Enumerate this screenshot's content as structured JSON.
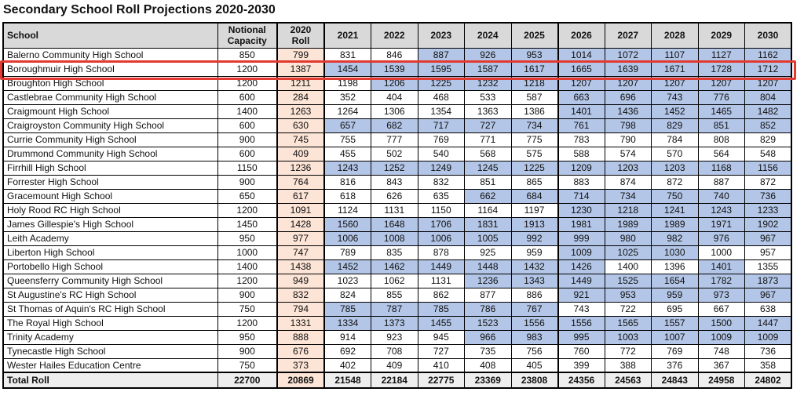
{
  "title": "Secondary School Roll Projections 2020-2030",
  "colors": {
    "header_bg": "#d9d9d9",
    "over_capacity_blue": "#b4c6e7",
    "roll_2020_peach": "#fce4d6",
    "total_row_bg": "#eeeeee",
    "highlight_red": "#e23930"
  },
  "table": {
    "columns": [
      "School",
      "Notional Capacity",
      "2020 Roll",
      "2021",
      "2022",
      "2023",
      "2024",
      "2025",
      "2026",
      "2027",
      "2028",
      "2029",
      "2030"
    ],
    "highlighted_school": "Boroughmuir High School",
    "rows": [
      {
        "school": "Balerno Community High School",
        "capacity": 850,
        "roll_2020": 799,
        "years": [
          831,
          846,
          887,
          926,
          953,
          1014,
          1072,
          1107,
          1127,
          1162
        ]
      },
      {
        "school": "Boroughmuir High School",
        "capacity": 1200,
        "roll_2020": 1387,
        "years": [
          1454,
          1539,
          1595,
          1587,
          1617,
          1665,
          1639,
          1671,
          1728,
          1712
        ]
      },
      {
        "school": "Broughton High School",
        "capacity": 1200,
        "roll_2020": 1211,
        "years": [
          1198,
          1206,
          1225,
          1232,
          1218,
          1207,
          1207,
          1207,
          1207,
          1207
        ]
      },
      {
        "school": "Castlebrae Community High School",
        "capacity": 600,
        "roll_2020": 284,
        "years": [
          352,
          404,
          468,
          533,
          587,
          663,
          696,
          743,
          776,
          804
        ]
      },
      {
        "school": "Craigmount High School",
        "capacity": 1400,
        "roll_2020": 1263,
        "years": [
          1264,
          1306,
          1354,
          1363,
          1386,
          1401,
          1436,
          1452,
          1465,
          1482
        ]
      },
      {
        "school": "Craigroyston Community High School",
        "capacity": 600,
        "roll_2020": 630,
        "years": [
          657,
          682,
          717,
          727,
          734,
          761,
          798,
          829,
          851,
          852
        ]
      },
      {
        "school": "Currie Community High School",
        "capacity": 900,
        "roll_2020": 745,
        "years": [
          755,
          777,
          769,
          771,
          775,
          783,
          790,
          784,
          808,
          829
        ]
      },
      {
        "school": "Drummond Community High School",
        "capacity": 600,
        "roll_2020": 409,
        "years": [
          455,
          502,
          540,
          568,
          575,
          588,
          574,
          570,
          564,
          548
        ]
      },
      {
        "school": "Firrhill High School",
        "capacity": 1150,
        "roll_2020": 1236,
        "years": [
          1243,
          1252,
          1249,
          1245,
          1225,
          1209,
          1203,
          1203,
          1168,
          1156
        ]
      },
      {
        "school": "Forrester High School",
        "capacity": 900,
        "roll_2020": 764,
        "years": [
          816,
          843,
          832,
          851,
          865,
          883,
          874,
          872,
          887,
          872
        ]
      },
      {
        "school": "Gracemount High School",
        "capacity": 650,
        "roll_2020": 617,
        "years": [
          618,
          626,
          635,
          662,
          684,
          714,
          734,
          750,
          740,
          736
        ]
      },
      {
        "school": "Holy Rood RC High School",
        "capacity": 1200,
        "roll_2020": 1091,
        "years": [
          1124,
          1131,
          1150,
          1164,
          1197,
          1230,
          1218,
          1241,
          1243,
          1233
        ]
      },
      {
        "school": "James Gillespie's High School",
        "capacity": 1450,
        "roll_2020": 1428,
        "years": [
          1560,
          1648,
          1706,
          1831,
          1913,
          1981,
          1989,
          1989,
          1971,
          1902
        ]
      },
      {
        "school": "Leith Academy",
        "capacity": 950,
        "roll_2020": 977,
        "years": [
          1006,
          1008,
          1006,
          1005,
          992,
          999,
          980,
          982,
          976,
          967
        ]
      },
      {
        "school": "Liberton High School",
        "capacity": 1000,
        "roll_2020": 747,
        "years": [
          789,
          835,
          878,
          925,
          959,
          1009,
          1025,
          1030,
          1000,
          957
        ]
      },
      {
        "school": "Portobello High School",
        "capacity": 1400,
        "roll_2020": 1438,
        "years": [
          1452,
          1462,
          1449,
          1448,
          1432,
          1426,
          1400,
          1396,
          1401,
          1355
        ]
      },
      {
        "school": "Queensferry Community High School",
        "capacity": 1200,
        "roll_2020": 949,
        "years": [
          1023,
          1062,
          1131,
          1236,
          1343,
          1449,
          1525,
          1654,
          1782,
          1873
        ]
      },
      {
        "school": "St Augustine's RC High School",
        "capacity": 900,
        "roll_2020": 832,
        "years": [
          824,
          855,
          862,
          877,
          886,
          921,
          953,
          959,
          973,
          967
        ]
      },
      {
        "school": "St Thomas of Aquin's RC High School",
        "capacity": 750,
        "roll_2020": 794,
        "years": [
          785,
          787,
          785,
          786,
          767,
          743,
          722,
          695,
          667,
          638
        ]
      },
      {
        "school": "The Royal High School",
        "capacity": 1200,
        "roll_2020": 1331,
        "years": [
          1334,
          1373,
          1455,
          1523,
          1556,
          1556,
          1565,
          1557,
          1500,
          1447
        ]
      },
      {
        "school": "Trinity Academy",
        "capacity": 950,
        "roll_2020": 888,
        "years": [
          914,
          923,
          945,
          966,
          983,
          995,
          1003,
          1007,
          1009,
          1009
        ]
      },
      {
        "school": "Tynecastle High School",
        "capacity": 900,
        "roll_2020": 676,
        "years": [
          692,
          708,
          727,
          735,
          756,
          760,
          772,
          769,
          748,
          736
        ]
      },
      {
        "school": "Wester Hailes Education Centre",
        "capacity": 750,
        "roll_2020": 373,
        "years": [
          402,
          409,
          410,
          408,
          405,
          399,
          388,
          376,
          367,
          358
        ]
      }
    ],
    "total_row": {
      "school": "Total Roll",
      "capacity": 22700,
      "roll_2020": 20869,
      "years": [
        21548,
        22184,
        22775,
        23369,
        23808,
        24356,
        24563,
        24843,
        24958,
        24802
      ]
    }
  }
}
